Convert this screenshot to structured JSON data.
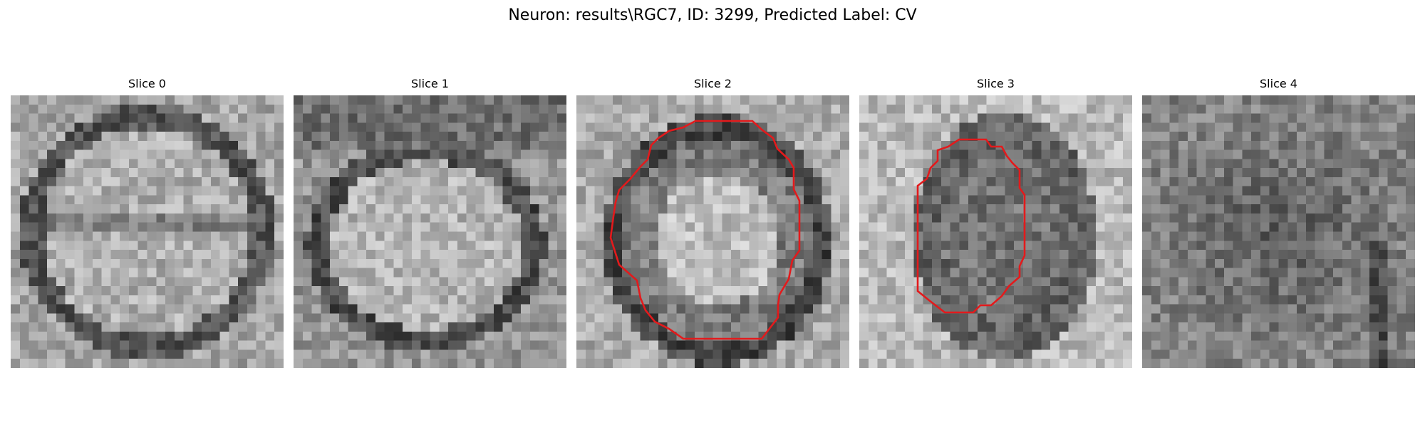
{
  "title": "Neuron: results\\RGC7, ID: 3299, Predicted Label: CV",
  "panels": [
    {
      "label": "Slice 0",
      "has_contour": false
    },
    {
      "label": "Slice 1",
      "has_contour": false
    },
    {
      "label": "Slice 2",
      "has_contour": true
    },
    {
      "label": "Slice 3",
      "has_contour": true
    },
    {
      "label": "Slice 4",
      "has_contour": false
    }
  ],
  "contour_color": "#e31a1c",
  "colormap": "gray"
}
